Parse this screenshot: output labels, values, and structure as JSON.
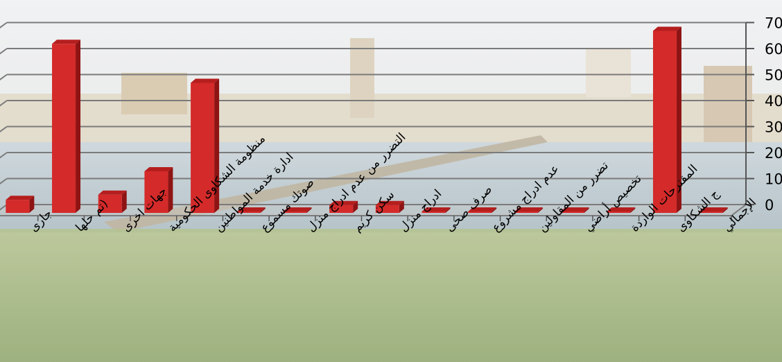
{
  "chart_data": {
    "type": "bar",
    "categories": [
      "جارى",
      "(تم حلها",
      "جهات اخرى",
      "منظومة الشكاوى الحكومية",
      "ادارة خدمة المواطنين",
      "صوتك مسموع",
      "التضرر من عدم ادراج منزل",
      "سكن كريم",
      "ادراج منزل",
      "صرف صحى",
      "عدم ادراج مشروع",
      "تضرر من المقاولين",
      "تخصيص أراضي",
      "المقترحات الواردة",
      "ج الشكاوى",
      "الإجمالي"
    ],
    "values": [
      5,
      65,
      7,
      16,
      50,
      0,
      0,
      3,
      3,
      0,
      0,
      0,
      0,
      0,
      70,
      0
    ],
    "ylim": [
      0,
      70
    ],
    "yticks": [
      0,
      10,
      20,
      30,
      40,
      50,
      60,
      70
    ],
    "grid": true,
    "bar_color": "#d42a2a"
  }
}
